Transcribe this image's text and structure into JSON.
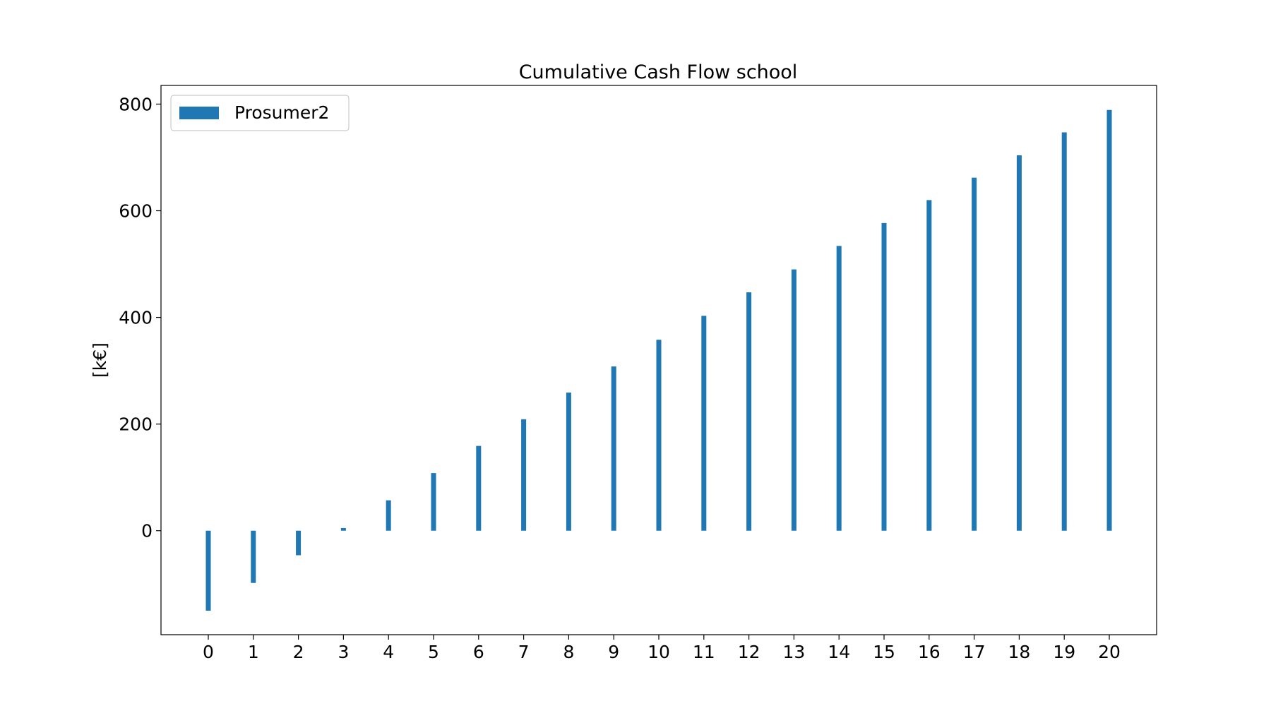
{
  "chart_data": {
    "type": "bar",
    "title": "Cumulative Cash Flow school",
    "xlabel": "",
    "ylabel": "[k€]",
    "categories": [
      "0",
      "1",
      "2",
      "3",
      "4",
      "5",
      "6",
      "7",
      "8",
      "9",
      "10",
      "11",
      "12",
      "13",
      "14",
      "15",
      "16",
      "17",
      "18",
      "19",
      "20"
    ],
    "series": [
      {
        "name": "Prosumer2",
        "color": "#1f77b4",
        "values": [
          -150,
          -98,
          -46,
          5,
          57,
          108,
          159,
          209,
          259,
          308,
          358,
          403,
          447,
          490,
          534,
          577,
          620,
          662,
          704,
          747,
          789
        ]
      }
    ],
    "ylim": [
      -195,
      835
    ],
    "yticks": [
      0,
      200,
      400,
      600,
      800
    ],
    "grid": false,
    "legend_position": "top-left"
  }
}
